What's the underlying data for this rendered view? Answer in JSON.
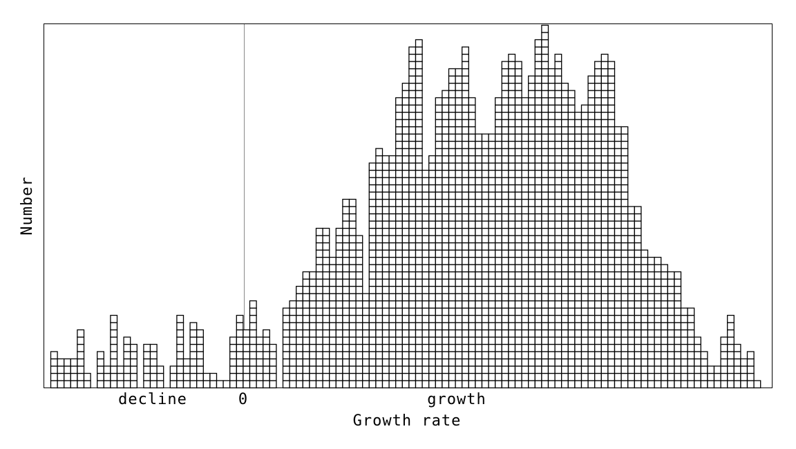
{
  "chart_data": {
    "type": "bar",
    "xlabel": "Growth rate",
    "ylabel": "Number",
    "tick_labels": {
      "decline": "decline",
      "zero": "0",
      "growth": "growth"
    },
    "counts": [
      5,
      4,
      4,
      4,
      8,
      2,
      0,
      5,
      3,
      10,
      3,
      7,
      6,
      0,
      6,
      6,
      3,
      0,
      3,
      10,
      4,
      9,
      8,
      2,
      2,
      1,
      1,
      7,
      10,
      8,
      12,
      7,
      8,
      6,
      0,
      11,
      12,
      14,
      16,
      16,
      22,
      22,
      18,
      22,
      26,
      26,
      21,
      13,
      31,
      33,
      32,
      32,
      40,
      42,
      47,
      48,
      30,
      32,
      40,
      41,
      44,
      44,
      47,
      40,
      35,
      35,
      35,
      40,
      45,
      46,
      45,
      40,
      43,
      48,
      50,
      44,
      46,
      42,
      41,
      38,
      39,
      43,
      45,
      46,
      45,
      36,
      36,
      25,
      25,
      19,
      18,
      18,
      17,
      16,
      16,
      11,
      11,
      7,
      5,
      3,
      3,
      7,
      10,
      6,
      4,
      5,
      1
    ],
    "grid": false
  }
}
